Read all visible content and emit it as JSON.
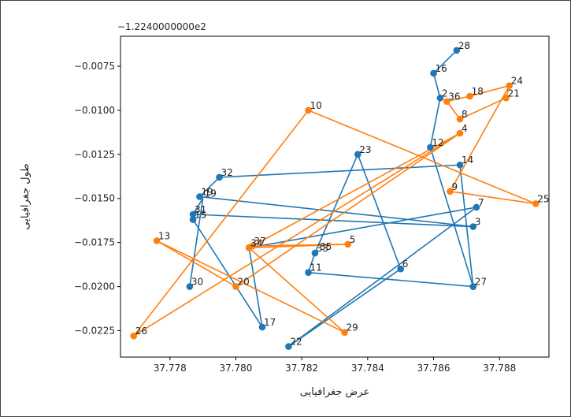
{
  "chart_data": {
    "type": "line",
    "title": "",
    "xlabel": "عرض جغرافیایی",
    "ylabel": "طول جغرافیایی",
    "y_offset_label": "−1.2240000000e2",
    "xlim": [
      37.7765,
      37.7895
    ],
    "ylim": [
      -0.024,
      -0.0058
    ],
    "x_ticks": [
      37.778,
      37.78,
      37.782,
      37.784,
      37.786,
      37.788
    ],
    "x_tick_labels": [
      "37.778",
      "37.780",
      "37.782",
      "37.784",
      "37.786",
      "37.788"
    ],
    "y_ticks": [
      -0.0075,
      -0.01,
      -0.0125,
      -0.015,
      -0.0175,
      -0.02,
      -0.0225
    ],
    "y_tick_labels": [
      "−0.0075",
      "−0.0100",
      "−0.0125",
      "−0.0150",
      "−0.0175",
      "−0.0200",
      "−0.0225"
    ],
    "grid": false,
    "series": [
      {
        "color": "#1f77b4",
        "points": [
          {
            "label": "28",
            "x": 37.7867,
            "y": -0.0066
          },
          {
            "label": "16",
            "x": 37.786,
            "y": -0.0079
          },
          {
            "label": "2",
            "x": 37.7862,
            "y": -0.0093
          },
          {
            "label": "12",
            "x": 37.7859,
            "y": -0.0121
          },
          {
            "label": "27",
            "x": 37.7872,
            "y": -0.02
          },
          {
            "label": "14",
            "x": 37.7868,
            "y": -0.0131
          },
          {
            "label": "32",
            "x": 37.7795,
            "y": -0.0138
          },
          {
            "label": "19",
            "x": 37.7789,
            "y": -0.0149
          },
          {
            "label": "3",
            "x": 37.7872,
            "y": -0.0166
          },
          {
            "label": "31",
            "x": 37.7787,
            "y": -0.0159
          },
          {
            "label": "15",
            "x": 37.7787,
            "y": -0.0162
          },
          {
            "label": "17",
            "x": 37.7808,
            "y": -0.0223
          },
          {
            "label": "",
            "x": 37.7804,
            "y": -0.0178
          },
          {
            "label": "7",
            "x": 37.7873,
            "y": -0.0155
          },
          {
            "label": "22",
            "x": 37.7816,
            "y": -0.0234
          },
          {
            "label": "6",
            "x": 37.785,
            "y": -0.019
          },
          {
            "label": "23",
            "x": 37.7837,
            "y": -0.0125
          },
          {
            "label": "33",
            "x": 37.7824,
            "y": -0.0181
          },
          {
            "label": "11",
            "x": 37.7822,
            "y": -0.0192
          },
          {
            "label": "27",
            "x": 37.7872,
            "y": -0.02
          }
        ],
        "extra_labels": [
          {
            "label": "30",
            "x": 37.7786,
            "y": -0.02
          },
          {
            "label": "35",
            "x": 37.7825,
            "y": -0.018
          },
          {
            "label": "19",
            "x": 37.779,
            "y": -0.015
          }
        ],
        "extra_points": [
          {
            "x": 37.7786,
            "y": -0.02
          }
        ],
        "path_order": [
          "28",
          "16",
          "2",
          "12",
          "27",
          "14",
          "32",
          "19",
          "3",
          "31",
          "15",
          "17",
          "-",
          "7",
          "22",
          "6",
          "23",
          "33",
          "11",
          "27"
        ],
        "extra_segments": [
          {
            "from": [
              37.7786,
              -0.02
            ],
            "to": [
              37.779,
              -0.015
            ]
          },
          {
            "from": [
              37.779,
              -0.015
            ],
            "to": [
              37.7787,
              -0.0159
            ]
          }
        ]
      },
      {
        "color": "#ff7f0e",
        "points": [
          {
            "label": "24",
            "x": 37.7883,
            "y": -0.0086
          },
          {
            "label": "18",
            "x": 37.7871,
            "y": -0.0092
          },
          {
            "label": "36",
            "x": 37.7864,
            "y": -0.0095
          },
          {
            "label": "8",
            "x": 37.7868,
            "y": -0.0105
          },
          {
            "label": "21",
            "x": 37.7882,
            "y": -0.0093
          },
          {
            "label": "9",
            "x": 37.7865,
            "y": -0.0146
          },
          {
            "label": "25",
            "x": 37.7891,
            "y": -0.0153
          },
          {
            "label": "10",
            "x": 37.7822,
            "y": -0.01
          },
          {
            "label": "26",
            "x": 37.7769,
            "y": -0.0228
          },
          {
            "label": "4",
            "x": 37.7868,
            "y": -0.0113
          },
          {
            "label": "20",
            "x": 37.78,
            "y": -0.02
          },
          {
            "label": "13",
            "x": 37.7776,
            "y": -0.0174
          },
          {
            "label": "29",
            "x": 37.7833,
            "y": -0.0226
          },
          {
            "label": "34",
            "x": 37.7804,
            "y": -0.0178
          },
          {
            "label": "37",
            "x": 37.7805,
            "y": -0.0177
          },
          {
            "label": "5",
            "x": 37.7834,
            "y": -0.0176
          }
        ],
        "path_order": [
          "24",
          "18",
          "36",
          "8",
          "21",
          "24",
          "9",
          "25",
          "10",
          "26",
          "4",
          "20",
          "13",
          "29",
          "34",
          "5",
          "37",
          "4"
        ]
      }
    ]
  }
}
